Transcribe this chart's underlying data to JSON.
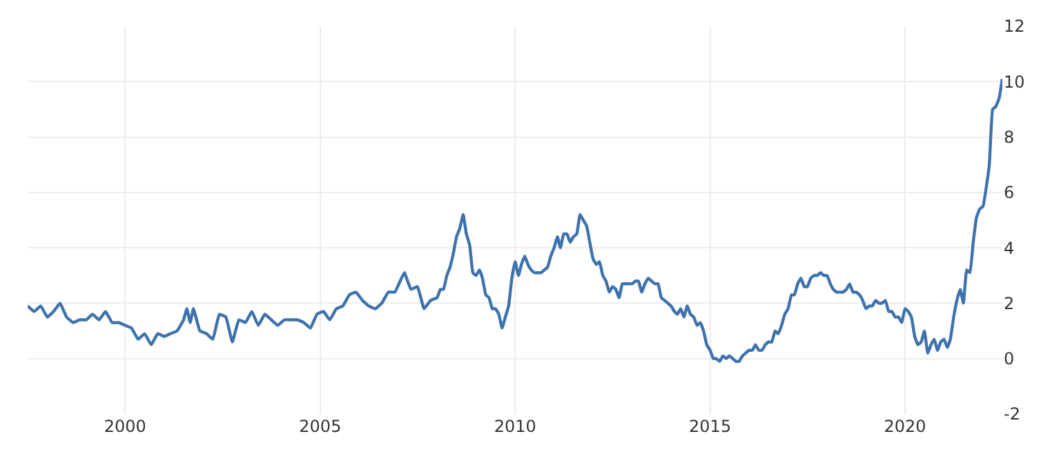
{
  "chart_data": {
    "type": "line",
    "xlim": [
      "1997-07",
      "2022-07"
    ],
    "xticks": [
      "2000",
      "2005",
      "2010",
      "2015",
      "2020"
    ],
    "ylim": [
      -2,
      12
    ],
    "yticks": [
      -2,
      0,
      2,
      4,
      6,
      8,
      10,
      12
    ],
    "grid": true,
    "marker": "none",
    "line_style": "solid",
    "series": [
      {
        "color": "#3e72ad",
        "x": [
          "1997-07",
          "1997-09",
          "1997-11",
          "1998-01",
          "1998-03",
          "1998-05",
          "1998-07",
          "1998-09",
          "1998-11",
          "1999-01",
          "1999-03",
          "1999-05",
          "1999-07",
          "1999-09",
          "1999-11",
          "2000-01",
          "2000-03",
          "2000-05",
          "2000-07",
          "2000-09",
          "2000-11",
          "2001-01",
          "2001-03",
          "2001-05",
          "2001-07",
          "2001-08",
          "2001-09",
          "2001-10",
          "2001-12",
          "2002-02",
          "2002-04",
          "2002-06",
          "2002-08",
          "2002-10",
          "2002-12",
          "2003-02",
          "2003-04",
          "2003-06",
          "2003-08",
          "2003-10",
          "2003-12",
          "2004-02",
          "2004-04",
          "2004-06",
          "2004-08",
          "2004-10",
          "2004-12",
          "2005-02",
          "2005-04",
          "2005-06",
          "2005-08",
          "2005-10",
          "2005-12",
          "2006-02",
          "2006-04",
          "2006-06",
          "2006-08",
          "2006-10",
          "2006-12",
          "2007-02",
          "2007-03",
          "2007-05",
          "2007-07",
          "2007-09",
          "2007-11",
          "2008-01",
          "2008-02",
          "2008-03",
          "2008-04",
          "2008-05",
          "2008-06",
          "2008-07",
          "2008-08",
          "2008-09",
          "2008-10",
          "2008-11",
          "2008-12",
          "2009-01",
          "2009-02",
          "2009-03",
          "2009-04",
          "2009-05",
          "2009-06",
          "2009-07",
          "2009-08",
          "2009-09",
          "2009-10",
          "2009-11",
          "2009-12",
          "2010-01",
          "2010-02",
          "2010-03",
          "2010-04",
          "2010-05",
          "2010-06",
          "2010-07",
          "2010-08",
          "2010-09",
          "2010-10",
          "2010-11",
          "2010-12",
          "2011-01",
          "2011-02",
          "2011-03",
          "2011-04",
          "2011-05",
          "2011-06",
          "2011-07",
          "2011-08",
          "2011-09",
          "2011-10",
          "2011-11",
          "2011-12",
          "2012-01",
          "2012-02",
          "2012-03",
          "2012-04",
          "2012-05",
          "2012-06",
          "2012-07",
          "2012-08",
          "2012-09",
          "2012-10",
          "2012-11",
          "2012-12",
          "2013-01",
          "2013-02",
          "2013-03",
          "2013-04",
          "2013-05",
          "2013-06",
          "2013-07",
          "2013-08",
          "2013-09",
          "2013-10",
          "2013-11",
          "2013-12",
          "2014-01",
          "2014-02",
          "2014-03",
          "2014-04",
          "2014-05",
          "2014-06",
          "2014-07",
          "2014-08",
          "2014-09",
          "2014-10",
          "2014-11",
          "2014-12",
          "2015-01",
          "2015-02",
          "2015-03",
          "2015-04",
          "2015-05",
          "2015-06",
          "2015-07",
          "2015-08",
          "2015-09",
          "2015-10",
          "2015-11",
          "2015-12",
          "2016-01",
          "2016-02",
          "2016-03",
          "2016-04",
          "2016-05",
          "2016-06",
          "2016-07",
          "2016-08",
          "2016-09",
          "2016-10",
          "2016-11",
          "2016-12",
          "2017-01",
          "2017-02",
          "2017-03",
          "2017-04",
          "2017-05",
          "2017-06",
          "2017-07",
          "2017-08",
          "2017-09",
          "2017-10",
          "2017-11",
          "2017-12",
          "2018-01",
          "2018-02",
          "2018-03",
          "2018-04",
          "2018-05",
          "2018-06",
          "2018-07",
          "2018-08",
          "2018-09",
          "2018-10",
          "2018-11",
          "2018-12",
          "2019-01",
          "2019-02",
          "2019-03",
          "2019-04",
          "2019-05",
          "2019-06",
          "2019-07",
          "2019-08",
          "2019-09",
          "2019-10",
          "2019-11",
          "2019-12",
          "2020-01",
          "2020-02",
          "2020-03",
          "2020-04",
          "2020-05",
          "2020-06",
          "2020-07",
          "2020-08",
          "2020-09",
          "2020-10",
          "2020-11",
          "2020-12",
          "2021-01",
          "2021-02",
          "2021-03",
          "2021-04",
          "2021-05",
          "2021-06",
          "2021-07",
          "2021-08",
          "2021-09",
          "2021-10",
          "2021-11",
          "2021-12",
          "2022-01",
          "2022-02",
          "2022-03",
          "2022-04",
          "2022-05",
          "2022-06",
          "2022-07"
        ],
        "values": [
          1.9,
          1.7,
          1.9,
          1.5,
          1.7,
          2.0,
          1.5,
          1.3,
          1.4,
          1.4,
          1.6,
          1.4,
          1.7,
          1.3,
          1.3,
          1.2,
          1.1,
          0.7,
          0.9,
          0.5,
          0.9,
          0.8,
          0.9,
          1.0,
          1.4,
          1.8,
          1.3,
          1.8,
          1.0,
          0.9,
          0.7,
          1.6,
          1.5,
          0.6,
          1.4,
          1.3,
          1.7,
          1.2,
          1.6,
          1.4,
          1.2,
          1.4,
          1.4,
          1.4,
          1.3,
          1.1,
          1.6,
          1.7,
          1.4,
          1.8,
          1.9,
          2.3,
          2.4,
          2.1,
          1.9,
          1.8,
          2.0,
          2.4,
          2.4,
          2.9,
          3.1,
          2.5,
          2.6,
          1.8,
          2.1,
          2.2,
          2.5,
          2.5,
          3.0,
          3.3,
          3.8,
          4.4,
          4.7,
          5.2,
          4.5,
          4.1,
          3.1,
          3.0,
          3.2,
          2.9,
          2.3,
          2.2,
          1.8,
          1.8,
          1.6,
          1.1,
          1.5,
          1.9,
          2.9,
          3.5,
          3.0,
          3.4,
          3.7,
          3.4,
          3.2,
          3.1,
          3.1,
          3.1,
          3.2,
          3.3,
          3.7,
          4.0,
          4.4,
          4.0,
          4.5,
          4.5,
          4.2,
          4.4,
          4.5,
          5.2,
          5.0,
          4.8,
          4.2,
          3.6,
          3.4,
          3.5,
          3.0,
          2.8,
          2.4,
          2.6,
          2.5,
          2.2,
          2.7,
          2.7,
          2.7,
          2.7,
          2.8,
          2.8,
          2.4,
          2.7,
          2.9,
          2.8,
          2.7,
          2.7,
          2.2,
          2.1,
          2.0,
          1.9,
          1.7,
          1.6,
          1.8,
          1.5,
          1.9,
          1.6,
          1.5,
          1.2,
          1.3,
          1.0,
          0.5,
          0.3,
          0.0,
          0.0,
          -0.1,
          0.1,
          0.0,
          0.1,
          0.0,
          -0.1,
          -0.1,
          0.1,
          0.2,
          0.3,
          0.3,
          0.5,
          0.3,
          0.3,
          0.5,
          0.6,
          0.6,
          1.0,
          0.9,
          1.2,
          1.6,
          1.8,
          2.3,
          2.3,
          2.7,
          2.9,
          2.6,
          2.6,
          2.9,
          3.0,
          3.0,
          3.1,
          3.0,
          3.0,
          2.7,
          2.5,
          2.4,
          2.4,
          2.4,
          2.5,
          2.7,
          2.4,
          2.4,
          2.3,
          2.1,
          1.8,
          1.9,
          1.9,
          2.1,
          2.0,
          2.0,
          2.1,
          1.7,
          1.7,
          1.5,
          1.5,
          1.3,
          1.8,
          1.7,
          1.5,
          0.8,
          0.5,
          0.6,
          1.0,
          0.2,
          0.5,
          0.7,
          0.3,
          0.6,
          0.7,
          0.4,
          0.7,
          1.5,
          2.1,
          2.5,
          2.0,
          3.2,
          3.1,
          4.2,
          5.1,
          5.4,
          5.5,
          6.2,
          7.0,
          9.0,
          9.1,
          9.4,
          10.1
        ]
      }
    ]
  }
}
